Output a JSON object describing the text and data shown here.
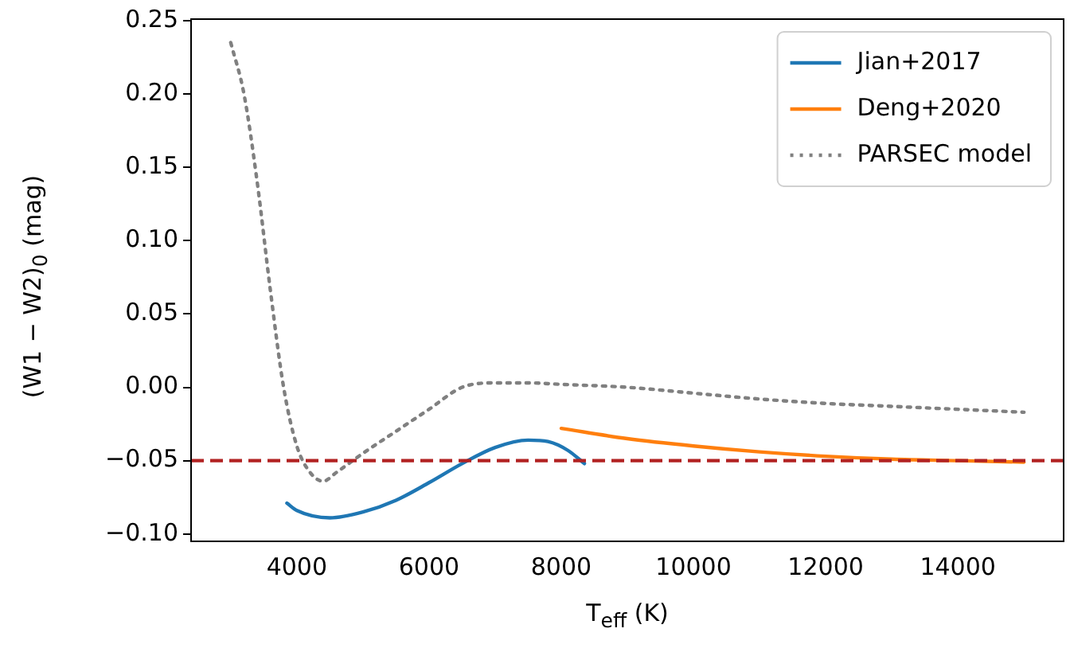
{
  "chart_data": {
    "type": "line",
    "xlabel": "T$_{eff}$ (K)",
    "ylabel": "(W1 − W2)$_{0}$ (mag)",
    "xlim": [
      2400,
      15600
    ],
    "xticks": [
      4000,
      6000,
      8000,
      10000,
      12000,
      14000
    ],
    "ylim": [
      -0.105,
      0.251
    ],
    "yticks": [
      {
        "value": -0.1,
        "label": "−0.10"
      },
      {
        "value": -0.05,
        "label": "−0.05"
      },
      {
        "value": 0,
        "label": "0.00"
      },
      {
        "value": 0.05,
        "label": "0.05"
      },
      {
        "value": 0.1,
        "label": "0.10"
      },
      {
        "value": 0.15,
        "label": "0.15"
      },
      {
        "value": 0.2,
        "label": "0.20"
      },
      {
        "value": 0.25,
        "label": "0.25"
      }
    ],
    "legend": "top right",
    "grid": false,
    "marker": "none",
    "series": [
      {
        "name": "Jian+2017",
        "color": "#1f77b4",
        "line_style": "solid",
        "x": [
          3850,
          4000,
          4500,
          5000,
          5500,
          6000,
          6500,
          7000,
          7500,
          7800,
          8100,
          8350
        ],
        "values": [
          -0.079,
          -0.084,
          -0.089,
          -0.085,
          -0.077,
          -0.065,
          -0.052,
          -0.041,
          -0.036,
          -0.037,
          -0.043,
          -0.052
        ]
      },
      {
        "name": "Deng+2020",
        "color": "#ff7f0e",
        "line_style": "solid",
        "x": [
          8000,
          9000,
          10000,
          11000,
          12000,
          13000,
          14000,
          15000
        ],
        "values": [
          -0.028,
          -0.035,
          -0.04,
          -0.044,
          -0.047,
          -0.049,
          -0.05,
          -0.051
        ]
      },
      {
        "name": "PARSEC model",
        "color": "#808080",
        "line_style": "dotted",
        "x": [
          3000,
          3200,
          3400,
          3600,
          3800,
          4000,
          4200,
          4400,
          4600,
          5000,
          5500,
          6000,
          6500,
          7000,
          7500,
          8000,
          9000,
          10000,
          11000,
          12000,
          13000,
          14000,
          15000
        ],
        "values": [
          0.235,
          0.2,
          0.14,
          0.066,
          0.0,
          -0.04,
          -0.058,
          -0.064,
          -0.058,
          -0.045,
          -0.03,
          -0.015,
          0.0,
          0.003,
          0.003,
          0.002,
          0.0,
          -0.004,
          -0.008,
          -0.011,
          -0.013,
          -0.015,
          -0.017
        ]
      }
    ],
    "ref_lines": [
      {
        "axis": "y",
        "value": -0.05,
        "color": "#b22222",
        "line_style": "dashed"
      }
    ]
  }
}
